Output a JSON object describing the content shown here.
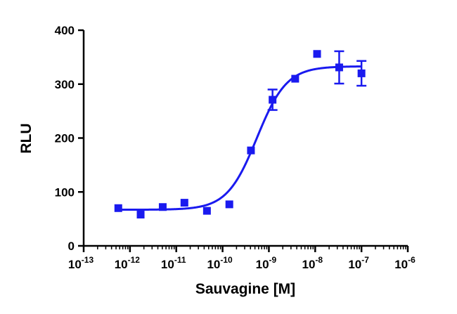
{
  "chart_data": {
    "type": "scatter",
    "title": "",
    "xlabel": "Sauvagine [M]",
    "ylabel": "RLU",
    "x_scale": "log",
    "xlim": [
      1e-13,
      1e-06
    ],
    "ylim": [
      0,
      400
    ],
    "x_ticks": [
      {
        "value": 1e-13,
        "base": "10",
        "exp": "-13"
      },
      {
        "value": 1e-12,
        "base": "10",
        "exp": "-12"
      },
      {
        "value": 1e-11,
        "base": "10",
        "exp": "-11"
      },
      {
        "value": 1e-10,
        "base": "10",
        "exp": "-10"
      },
      {
        "value": 1e-09,
        "base": "10",
        "exp": "-9"
      },
      {
        "value": 1e-08,
        "base": "10",
        "exp": "-8"
      },
      {
        "value": 1e-07,
        "base": "10",
        "exp": "-7"
      },
      {
        "value": 1e-06,
        "base": "10",
        "exp": "-6"
      }
    ],
    "y_ticks": [
      {
        "value": 0,
        "label": "0"
      },
      {
        "value": 100,
        "label": "100"
      },
      {
        "value": 200,
        "label": "200"
      },
      {
        "value": 300,
        "label": "300"
      },
      {
        "value": 400,
        "label": "400"
      }
    ],
    "grid": false,
    "color": "#1a1aef",
    "points": [
      {
        "x": 5.6e-13,
        "y": 70,
        "err": 0
      },
      {
        "x": 1.7e-12,
        "y": 58,
        "err": 0
      },
      {
        "x": 5.1e-12,
        "y": 72,
        "err": 0
      },
      {
        "x": 1.5e-11,
        "y": 80,
        "err": 0
      },
      {
        "x": 4.6e-11,
        "y": 65,
        "err": 0
      },
      {
        "x": 1.4e-10,
        "y": 77,
        "err": 0
      },
      {
        "x": 4.1e-10,
        "y": 177,
        "err": 0
      },
      {
        "x": 1.2e-09,
        "y": 271,
        "err": 19
      },
      {
        "x": 3.7e-09,
        "y": 310,
        "err": 0
      },
      {
        "x": 1.1e-08,
        "y": 356,
        "err": 0
      },
      {
        "x": 3.3e-08,
        "y": 331,
        "err": 30
      },
      {
        "x": 1e-07,
        "y": 320,
        "err": 23
      }
    ],
    "fit": {
      "model": "sigmoidal dose-response",
      "bottom": 67,
      "top": 333,
      "ec50": 5.5e-10,
      "hill": 1.35
    }
  }
}
